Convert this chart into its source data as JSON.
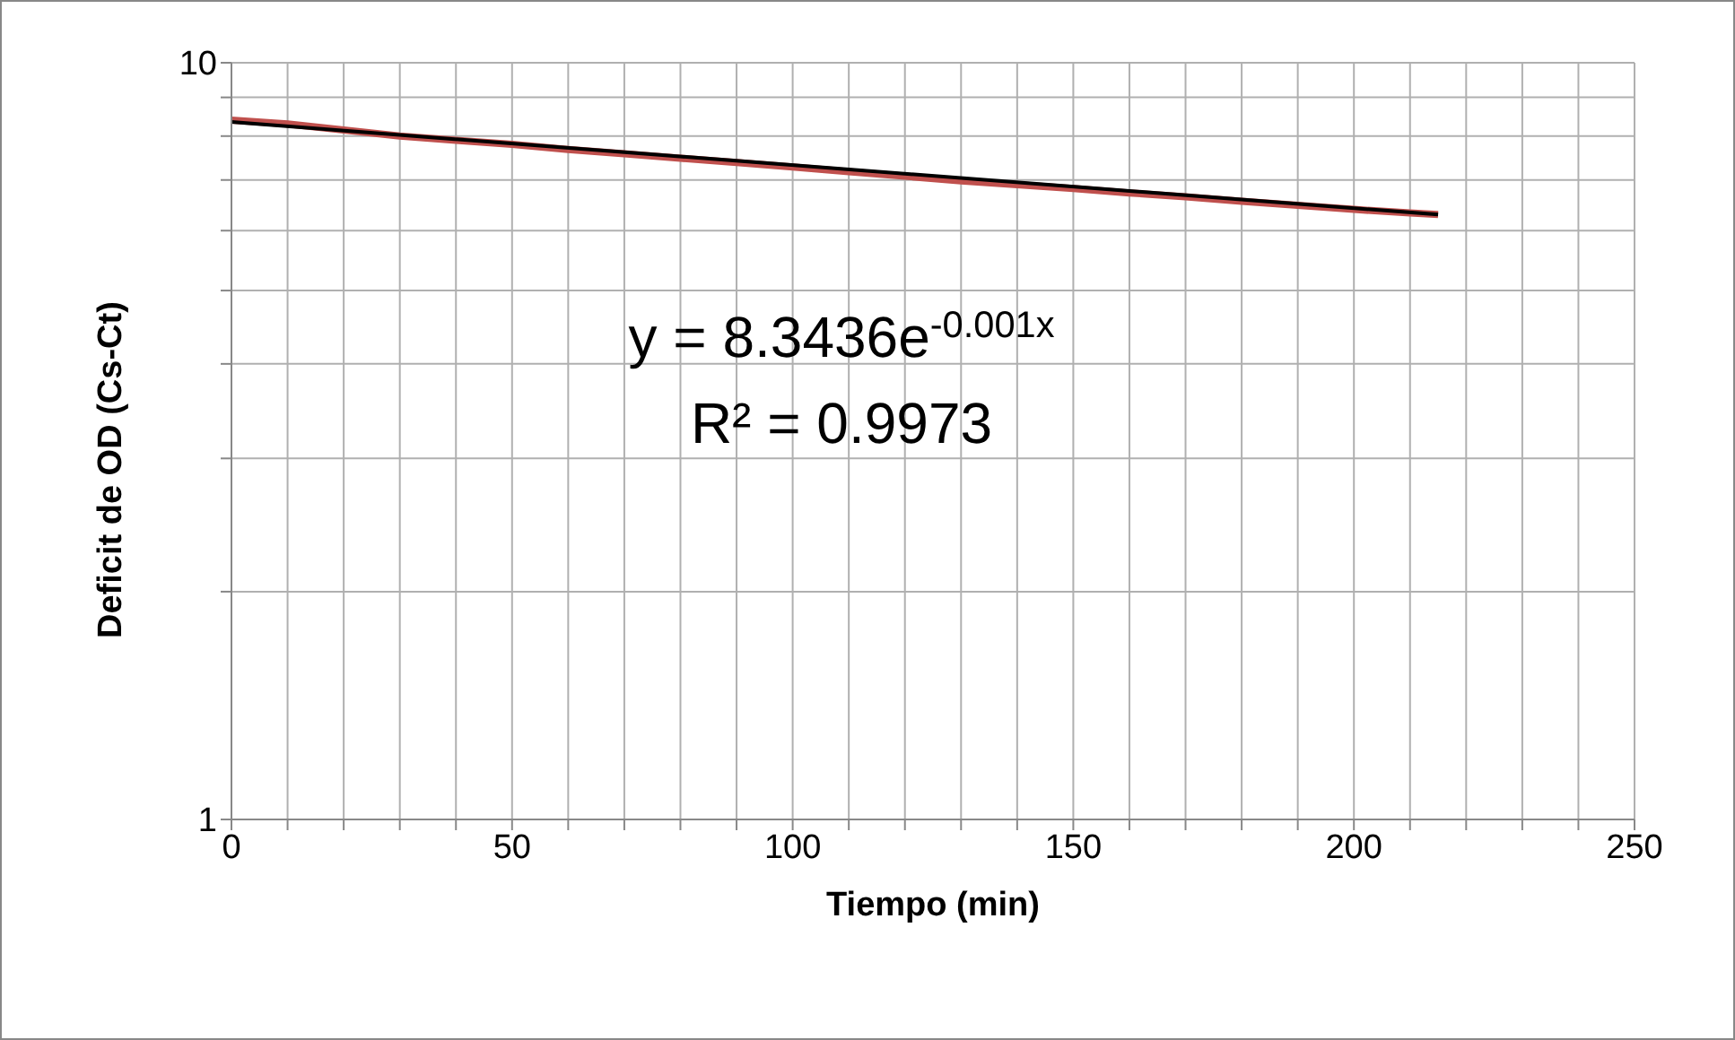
{
  "chart_data": {
    "type": "line",
    "xlabel": "Tiempo (min)",
    "ylabel": "Deficit de OD (Cs-Ct)",
    "log": "y",
    "grid": true,
    "marker": "none",
    "line_style": "solid",
    "xlim": [
      0,
      250
    ],
    "xticks": [
      0,
      {
        "value": 10,
        "label": null
      },
      {
        "value": 20,
        "label": null
      },
      {
        "value": 30,
        "label": null
      },
      {
        "value": 40,
        "label": null
      },
      50,
      {
        "value": 60,
        "label": null
      },
      {
        "value": 70,
        "label": null
      },
      {
        "value": 80,
        "label": null
      },
      {
        "value": 90,
        "label": null
      },
      100,
      {
        "value": 110,
        "label": null
      },
      {
        "value": 120,
        "label": null
      },
      {
        "value": 130,
        "label": null
      },
      {
        "value": 140,
        "label": null
      },
      150,
      {
        "value": 160,
        "label": null
      },
      {
        "value": 170,
        "label": null
      },
      {
        "value": 180,
        "label": null
      },
      {
        "value": 190,
        "label": null
      },
      200,
      {
        "value": 210,
        "label": null
      },
      {
        "value": 220,
        "label": null
      },
      {
        "value": 230,
        "label": null
      },
      {
        "value": 240,
        "label": null
      },
      250
    ],
    "ylim": [
      1,
      10
    ],
    "yticks": [
      1,
      {
        "value": 2,
        "label": null
      },
      {
        "value": 3,
        "label": null
      },
      {
        "value": 4,
        "label": null
      },
      {
        "value": 5,
        "label": null
      },
      {
        "value": 6,
        "label": null
      },
      {
        "value": 7,
        "label": null
      },
      {
        "value": 8,
        "label": null
      },
      {
        "value": 9,
        "label": null
      },
      10
    ],
    "series": [
      {
        "type": "line",
        "color": "#c0504d",
        "x": [
          0,
          10,
          20,
          30,
          40,
          50,
          60,
          70,
          80,
          90,
          100,
          110,
          120,
          130,
          140,
          150,
          160,
          170,
          180,
          190,
          200,
          210,
          215
        ],
        "values": [
          8.4,
          8.3,
          8.15,
          8.0,
          7.9,
          7.8,
          7.68,
          7.58,
          7.48,
          7.38,
          7.28,
          7.18,
          7.08,
          6.98,
          6.9,
          6.82,
          6.73,
          6.65,
          6.56,
          6.48,
          6.4,
          6.33,
          6.3
        ]
      },
      {
        "type": "line",
        "color": "#000000",
        "x": [
          0,
          215
        ],
        "values": [
          8.35,
          6.3
        ]
      }
    ],
    "annotations": [
      "y = 8.3436e$^{-0.001x}$",
      "R² = 0.9973"
    ]
  }
}
